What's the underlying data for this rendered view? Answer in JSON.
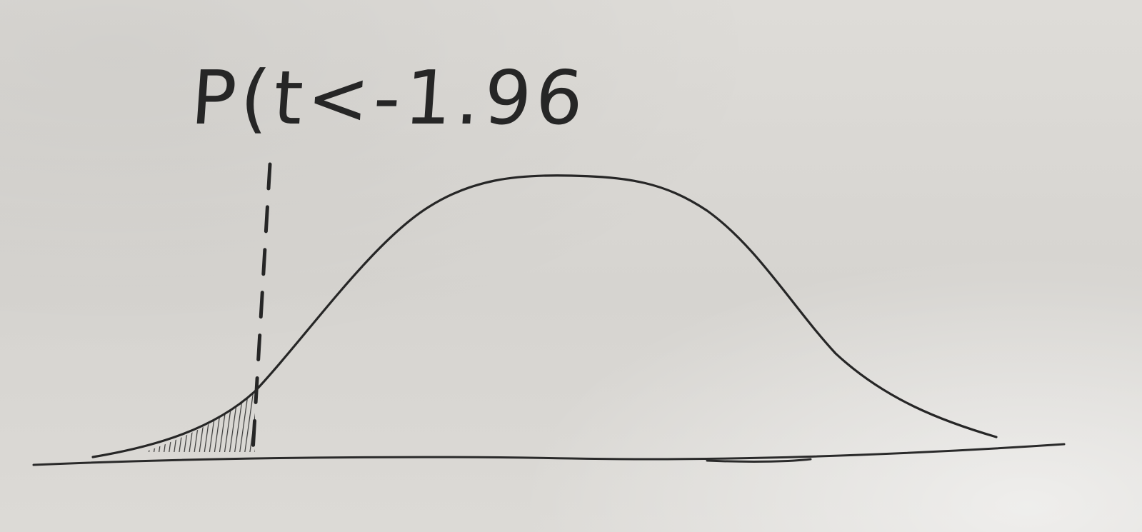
{
  "diagram": {
    "label": "P(t<-1.96)",
    "ink_color": "#262626"
  }
}
